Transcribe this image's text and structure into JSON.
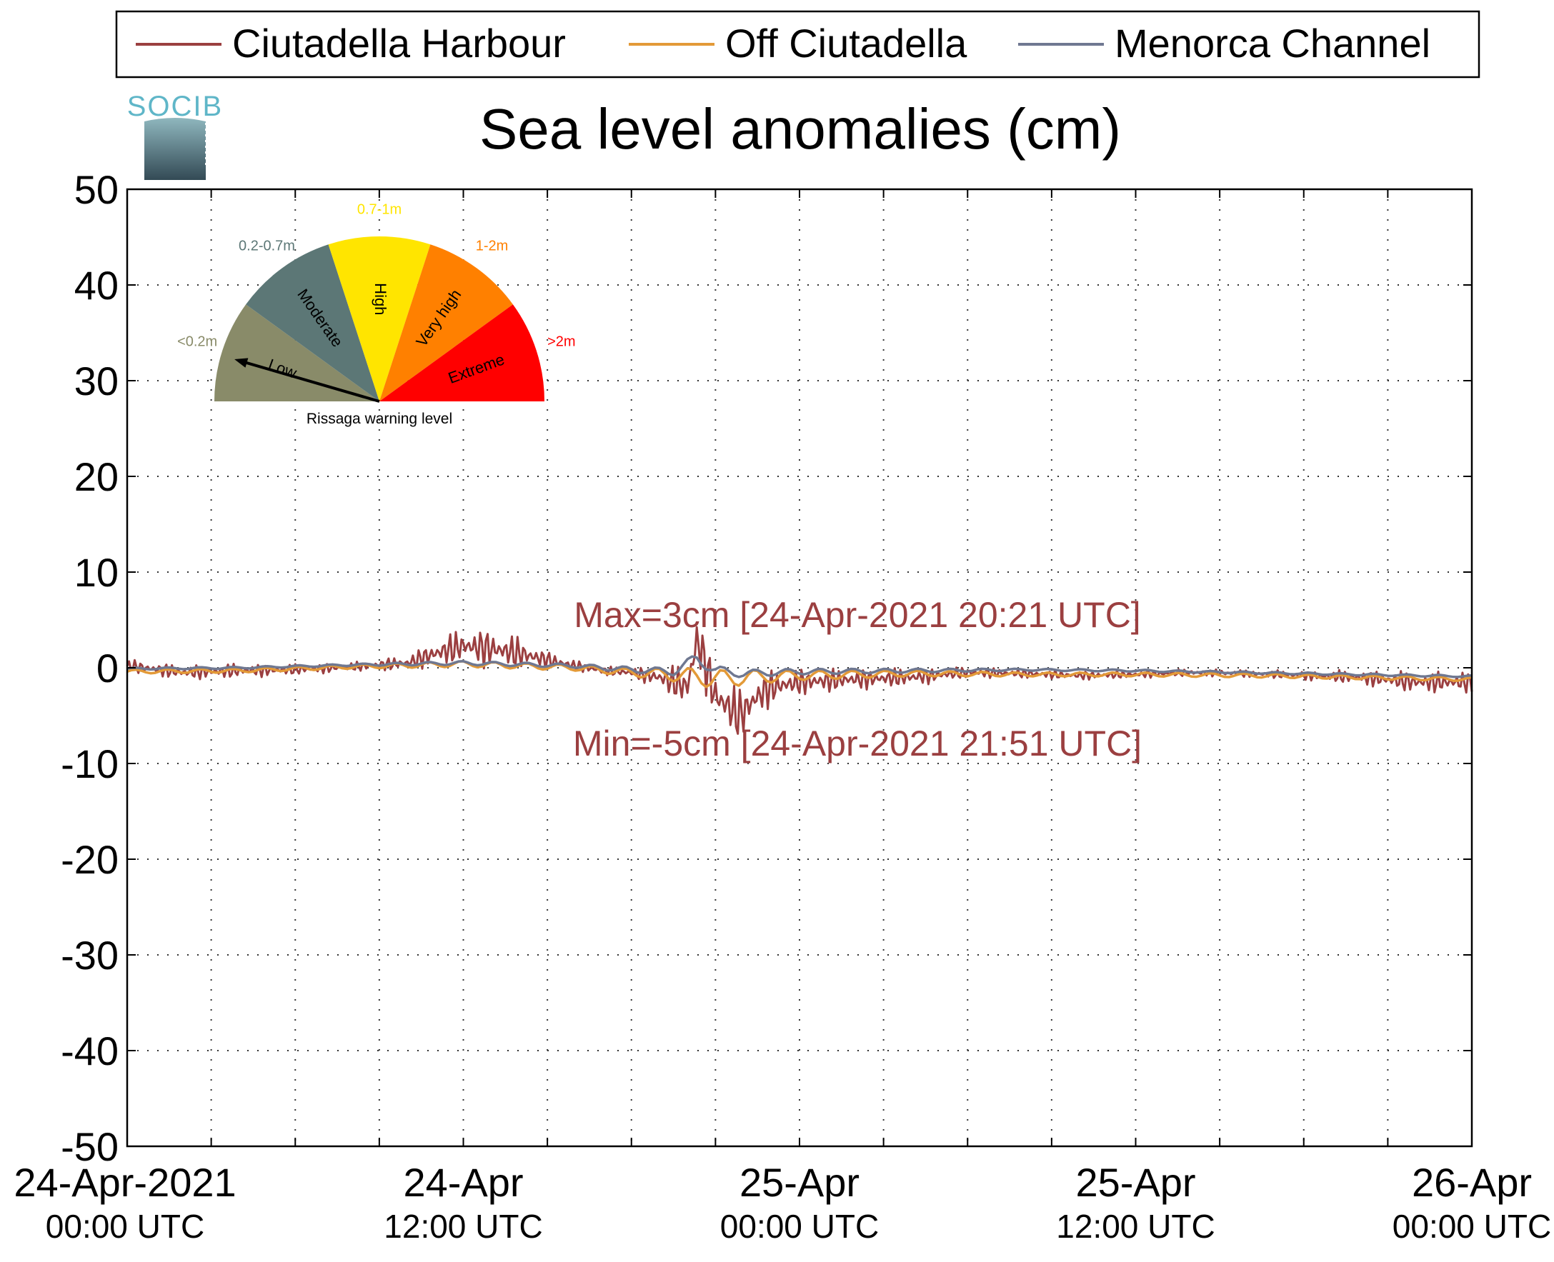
{
  "chart_data": {
    "type": "line",
    "title": "Sea level anomalies (cm)",
    "logo_text": "SOCIB",
    "xlim": [
      "2021-04-24 00:00",
      "2021-04-26 00:00"
    ],
    "ylim": [
      -50,
      50
    ],
    "grid": true,
    "legend_position": "top",
    "x_ticks": [
      {
        "time": "2021-04-24 00:00",
        "date": "24-Apr-2021",
        "time_label": "00:00 UTC"
      },
      {
        "time": "2021-04-24 12:00",
        "date": "24-Apr",
        "time_label": "12:00 UTC"
      },
      {
        "time": "2021-04-25 00:00",
        "date": "25-Apr",
        "time_label": "00:00 UTC"
      },
      {
        "time": "2021-04-25 12:00",
        "date": "25-Apr",
        "time_label": "12:00 UTC"
      },
      {
        "time": "2021-04-26 00:00",
        "date": "26-Apr",
        "time_label": "00:00 UTC"
      }
    ],
    "y_ticks": [
      "50",
      "40",
      "30",
      "20",
      "10",
      "0",
      "-10",
      "-20",
      "-30",
      "-40",
      "-50"
    ],
    "annotations": {
      "max": {
        "text": "Max=3cm [24-Apr-2021 20:21 UTC]",
        "color": "#9b3f40"
      },
      "min": {
        "text": "Min=-5cm [24-Apr-2021 21:51 UTC]",
        "color": "#9b3f40"
      }
    },
    "series": [
      {
        "name": "Ciutadella Harbour",
        "color": "#9b3f40",
        "x": [
          "2021-04-24 00:00",
          "2021-04-24 02:00",
          "2021-04-24 04:00",
          "2021-04-24 06:00",
          "2021-04-24 08:00",
          "2021-04-24 10:00",
          "2021-04-24 11:00",
          "2021-04-24 12:00",
          "2021-04-24 13:00",
          "2021-04-24 14:00",
          "2021-04-24 15:00",
          "2021-04-24 16:00",
          "2021-04-24 17:00",
          "2021-04-24 18:00",
          "2021-04-24 19:00",
          "2021-04-24 20:00",
          "2021-04-24 20:21",
          "2021-04-24 21:00",
          "2021-04-24 21:51",
          "2021-04-24 22:30",
          "2021-04-24 23:00",
          "2021-04-25 00:00",
          "2021-04-25 02:00",
          "2021-04-25 04:00",
          "2021-04-25 06:00",
          "2021-04-25 08:00",
          "2021-04-25 10:00",
          "2021-04-25 12:00",
          "2021-04-25 14:00",
          "2021-04-25 16:00",
          "2021-04-25 18:00",
          "2021-04-25 20:00",
          "2021-04-25 22:00",
          "2021-04-26 00:00"
        ],
        "y": [
          0.2,
          -0.5,
          -0.3,
          -0.2,
          0.1,
          0.5,
          1.5,
          2.3,
          2.0,
          1.5,
          0.8,
          0.2,
          -0.3,
          -0.5,
          -1.0,
          -2.0,
          3.0,
          -3.0,
          -5.0,
          -3.0,
          -2.0,
          -1.5,
          -1.2,
          -1.0,
          -0.5,
          -0.6,
          -0.8,
          -0.7,
          -0.5,
          -0.6,
          -0.8,
          -1.0,
          -1.5,
          -1.5
        ],
        "amplitude": [
          0.7,
          0.8,
          0.8,
          0.6,
          0.5,
          0.8,
          1.5,
          2.0,
          2.2,
          1.8,
          1.0,
          0.6,
          0.5,
          0.6,
          1.2,
          2.5,
          3.0,
          3.0,
          3.0,
          2.5,
          2.0,
          1.5,
          1.2,
          1.0,
          0.6,
          0.5,
          0.5,
          0.4,
          0.4,
          0.4,
          0.5,
          0.8,
          1.2,
          1.2
        ]
      },
      {
        "name": "Off Ciutadella",
        "color": "#e39a38",
        "x": [
          "2021-04-24 00:00",
          "2021-04-24 04:00",
          "2021-04-24 08:00",
          "2021-04-24 12:00",
          "2021-04-24 16:00",
          "2021-04-24 18:00",
          "2021-04-24 20:00",
          "2021-04-24 21:00",
          "2021-04-24 22:00",
          "2021-04-25 00:00",
          "2021-04-25 04:00",
          "2021-04-25 08:00",
          "2021-04-25 12:00",
          "2021-04-25 16:00",
          "2021-04-25 20:00",
          "2021-04-26 00:00"
        ],
        "y": [
          -0.4,
          -0.3,
          0.1,
          0.4,
          0.0,
          -0.5,
          -0.8,
          -1.2,
          -1.0,
          -0.8,
          -0.6,
          -0.7,
          -0.7,
          -0.8,
          -1.0,
          -1.2
        ],
        "amplitude": [
          0.2,
          0.2,
          0.2,
          0.3,
          0.3,
          0.4,
          0.8,
          1.0,
          0.8,
          0.5,
          0.3,
          0.2,
          0.2,
          0.2,
          0.2,
          0.2
        ]
      },
      {
        "name": "Menorca Channel",
        "color": "#6f7891",
        "x": [
          "2021-04-24 00:00",
          "2021-04-24 04:00",
          "2021-04-24 08:00",
          "2021-04-24 12:00",
          "2021-04-24 16:00",
          "2021-04-24 18:00",
          "2021-04-24 19:30",
          "2021-04-24 20:21",
          "2021-04-24 21:00",
          "2021-04-24 22:00",
          "2021-04-25 00:00",
          "2021-04-25 04:00",
          "2021-04-25 08:00",
          "2021-04-25 12:00",
          "2021-04-25 16:00",
          "2021-04-25 20:00",
          "2021-04-26 00:00"
        ],
        "y": [
          -0.1,
          0.0,
          0.3,
          0.5,
          0.2,
          -0.2,
          -0.4,
          1.0,
          -0.3,
          -0.6,
          -0.4,
          -0.3,
          -0.2,
          -0.3,
          -0.5,
          -0.7,
          -0.9
        ],
        "amplitude": [
          0.1,
          0.1,
          0.1,
          0.2,
          0.2,
          0.3,
          0.4,
          0.6,
          0.5,
          0.4,
          0.3,
          0.2,
          0.1,
          0.1,
          0.1,
          0.1,
          0.1
        ]
      }
    ]
  },
  "gauge": {
    "caption": "Rissaga warning level",
    "current_level": "Low",
    "sectors": [
      {
        "label": "Low",
        "range": "<0.2m",
        "color": "#898b69",
        "range_color": "#898b69"
      },
      {
        "label": "Moderate",
        "range": "0.2-0.7m",
        "color": "#5c7776",
        "range_color": "#5c7776"
      },
      {
        "label": "High",
        "range": "0.7-1m",
        "color": "#ffe500",
        "range_color": "#ffe500"
      },
      {
        "label": "Very high",
        "range": "1-2m",
        "color": "#ff8000",
        "range_color": "#ff8000"
      },
      {
        "label": "Extreme",
        "range": ">2m",
        "color": "#ff0000",
        "range_color": "#ff0000"
      }
    ]
  }
}
